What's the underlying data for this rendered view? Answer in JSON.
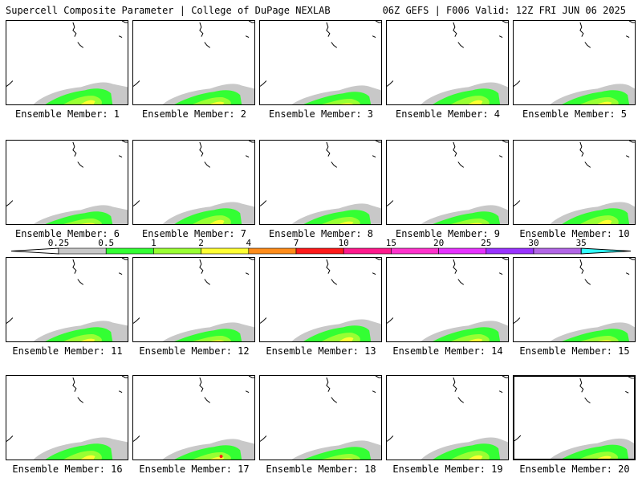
{
  "header": {
    "left_title": "Supercell Composite Parameter | College of DuPage NEXLAB",
    "right_title": "06Z GEFS | F006 Valid: 12Z FRI JUN 06 2025"
  },
  "legend": {
    "levels": [
      "0.25",
      "0.5",
      "1",
      "2",
      "4",
      "7",
      "10",
      "15",
      "20",
      "25",
      "30",
      "35"
    ],
    "colors": [
      "#ffffff",
      "#c8c8c8",
      "#33ff33",
      "#99ff33",
      "#ffff33",
      "#ff8c1a",
      "#ff1a1a",
      "#ff1a8c",
      "#ff33cc",
      "#e633ff",
      "#9933ff",
      "#b266e6",
      "#33ffff"
    ]
  },
  "members": [
    {
      "label": "Ensemble Member: 1"
    },
    {
      "label": "Ensemble Member: 2"
    },
    {
      "label": "Ensemble Member: 3"
    },
    {
      "label": "Ensemble Member: 4"
    },
    {
      "label": "Ensemble Member: 5"
    },
    {
      "label": "Ensemble Member: 6"
    },
    {
      "label": "Ensemble Member: 7"
    },
    {
      "label": "Ensemble Member: 8"
    },
    {
      "label": "Ensemble Member: 9"
    },
    {
      "label": "Ensemble Member: 10"
    },
    {
      "label": "Ensemble Member: 11"
    },
    {
      "label": "Ensemble Member: 12"
    },
    {
      "label": "Ensemble Member: 13"
    },
    {
      "label": "Ensemble Member: 14"
    },
    {
      "label": "Ensemble Member: 15"
    },
    {
      "label": "Ensemble Member: 16"
    },
    {
      "label": "Ensemble Member: 17"
    },
    {
      "label": "Ensemble Member: 18"
    },
    {
      "label": "Ensemble Member: 19"
    },
    {
      "label": "Ensemble Member: 20"
    }
  ],
  "selected_member": 20,
  "map_colors": {
    "gray": "#c8c8c8",
    "green": "#33ff33",
    "lime": "#99ff33",
    "yellow": "#ffff33",
    "red": "#ff1a1a"
  }
}
